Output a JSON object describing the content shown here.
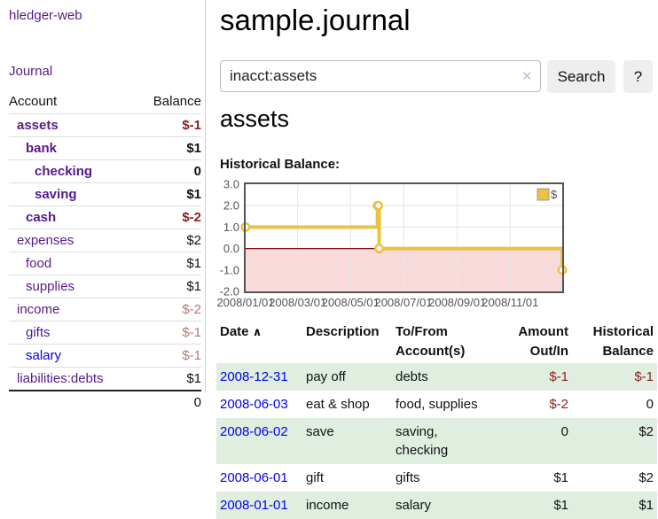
{
  "app": {
    "brand": "hledger-web",
    "nav_journal": "Journal"
  },
  "sidebar": {
    "accounts_header": {
      "account": "Account",
      "balance": "Balance"
    },
    "accounts": [
      {
        "name": "assets",
        "balance": "$-1",
        "indent": 1,
        "bold": true,
        "negative": "strong"
      },
      {
        "name": "bank",
        "balance": "$1",
        "indent": 2,
        "bold": true,
        "negative": "none"
      },
      {
        "name": "checking",
        "balance": "0",
        "indent": 3,
        "bold": true,
        "negative": "none"
      },
      {
        "name": "saving",
        "balance": "$1",
        "indent": 3,
        "bold": true,
        "negative": "none"
      },
      {
        "name": "cash",
        "balance": "$-2",
        "indent": 2,
        "bold": true,
        "negative": "strong"
      },
      {
        "name": "expenses",
        "balance": "$2",
        "indent": 1,
        "bold": false,
        "negative": "none"
      },
      {
        "name": "food",
        "balance": "$1",
        "indent": 2,
        "bold": false,
        "negative": "none"
      },
      {
        "name": "supplies",
        "balance": "$1",
        "indent": 2,
        "bold": false,
        "negative": "none"
      },
      {
        "name": "income",
        "balance": "$-2",
        "indent": 1,
        "bold": false,
        "negative": "soft"
      },
      {
        "name": "gifts",
        "balance": "$-1",
        "indent": 2,
        "bold": false,
        "negative": "soft"
      },
      {
        "name": "salary",
        "balance": "$-1",
        "indent": 2,
        "bold": false,
        "negative": "soft",
        "link": "unvisited"
      },
      {
        "name": "liabilities:debts",
        "balance": "$1",
        "indent": 1,
        "bold": false,
        "negative": "none"
      }
    ],
    "total": "0"
  },
  "header": {
    "title": "sample.journal"
  },
  "search": {
    "value": "inacct:assets",
    "clear_icon": "✕",
    "button": "Search",
    "help_button": "?"
  },
  "account_page": {
    "title": "assets",
    "chart_label": "Historical Balance:"
  },
  "chart_data": {
    "type": "line",
    "title": "Historical Balance",
    "legend": [
      {
        "label": "$",
        "color": "#edc240"
      }
    ],
    "x": {
      "ticks": [
        {
          "label": "2008/01/01",
          "day": 0
        },
        {
          "label": "2008/03/01",
          "day": 60
        },
        {
          "label": "2008/05/01",
          "day": 121
        },
        {
          "label": "2008/07/01",
          "day": 182
        },
        {
          "label": "2008/09/01",
          "day": 244
        },
        {
          "label": "2008/11/01",
          "day": 305
        }
      ],
      "range_days": [
        0,
        365
      ]
    },
    "y": {
      "ticks": [
        {
          "label": "3.0",
          "value": 3
        },
        {
          "label": "2.0",
          "value": 2
        },
        {
          "label": "1.0",
          "value": 1
        },
        {
          "label": "0.0",
          "value": 0
        },
        {
          "label": "-1.0",
          "value": -1
        },
        {
          "label": "-2.0",
          "value": -2
        }
      ],
      "range": [
        -2,
        3
      ]
    },
    "series": [
      {
        "name": "$",
        "color": "#edc240",
        "style": "step",
        "points": [
          {
            "date": "2008-01-01",
            "day": 0,
            "value": 1
          },
          {
            "date": "2008-06-01",
            "day": 152,
            "value": 2
          },
          {
            "date": "2008-06-02",
            "day": 153,
            "value": 2
          },
          {
            "date": "2008-06-03",
            "day": 154,
            "value": 0
          },
          {
            "date": "2008-12-31",
            "day": 365,
            "value": -1
          }
        ]
      }
    ],
    "grid": {
      "grid_color": "#e6e6e6",
      "border_color": "#545454",
      "zero_line_color": "#8b0000",
      "negative_fill": "#f9dada",
      "tick_label_color": "#545454",
      "legend_on": true,
      "legend_position": "top-right"
    }
  },
  "register": {
    "sort_icon": "∧",
    "columns": [
      "Date",
      "Description",
      "To/From Account(s)",
      "Amount Out/In",
      "Historical Balance"
    ],
    "rows": [
      {
        "date": "2008-12-31",
        "description": "pay off",
        "accounts": "debts",
        "amount": "$-1",
        "amount_negative": true,
        "balance": "$-1",
        "balance_negative": true
      },
      {
        "date": "2008-06-03",
        "description": "eat & shop",
        "accounts": "food, supplies",
        "amount": "$-2",
        "amount_negative": true,
        "balance": "0",
        "balance_negative": false
      },
      {
        "date": "2008-06-02",
        "description": "save",
        "accounts": "saving, checking",
        "amount": "0",
        "amount_negative": false,
        "balance": "$2",
        "balance_negative": false
      },
      {
        "date": "2008-06-01",
        "description": "gift",
        "accounts": "gifts",
        "amount": "$1",
        "amount_negative": false,
        "balance": "$2",
        "balance_negative": false
      },
      {
        "date": "2008-01-01",
        "description": "income",
        "accounts": "salary",
        "amount": "$1",
        "amount_negative": false,
        "balance": "$1",
        "balance_negative": false
      }
    ]
  }
}
